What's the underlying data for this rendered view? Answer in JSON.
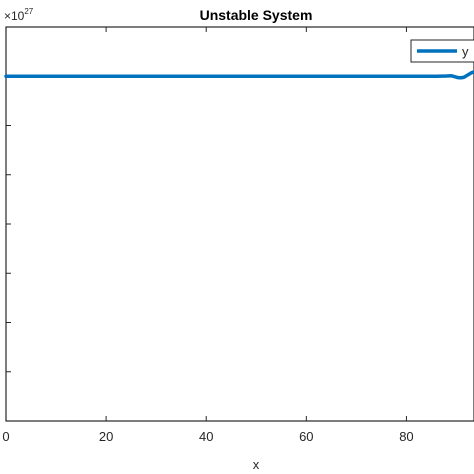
{
  "chart_data": {
    "type": "line",
    "title": "Unstable System",
    "xlabel": "x",
    "ylabel": "",
    "y_exponent_label": "×10",
    "y_exponent": "27",
    "xlim": [
      0,
      93.5
    ],
    "ylim": [
      -7,
      1
    ],
    "x_ticks": [
      0,
      20,
      40,
      60,
      80
    ],
    "x_tick_labels": [
      "0",
      "20",
      "40",
      "60",
      "80"
    ],
    "y_ticks": [
      -7,
      -6,
      -5,
      -4,
      -3,
      -2,
      -1,
      0,
      1
    ],
    "grid": false,
    "legend": {
      "position": "top-right",
      "entries": [
        "y"
      ]
    },
    "series": [
      {
        "name": "y",
        "color": "#0072bd",
        "x": [
          0,
          10,
          20,
          30,
          40,
          50,
          60,
          70,
          80,
          86,
          88,
          89,
          90,
          90.5,
          91,
          91.5,
          92,
          92.5,
          93,
          93.5
        ],
        "y": [
          0,
          0,
          0,
          0,
          0,
          0,
          0,
          0,
          0,
          0,
          0.004,
          0.01,
          -0.02,
          -0.03,
          -0.03,
          -0.02,
          0.01,
          0.04,
          0.07,
          0.09
        ]
      }
    ]
  }
}
